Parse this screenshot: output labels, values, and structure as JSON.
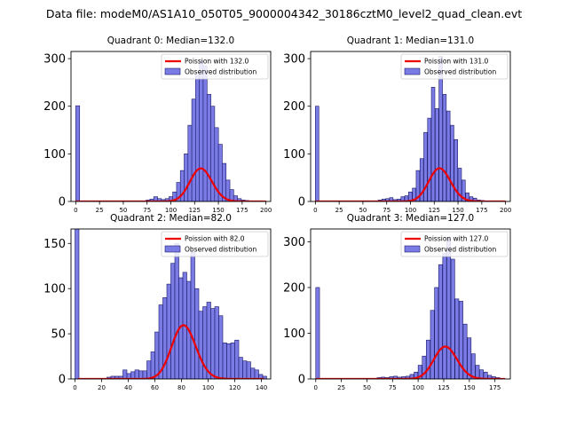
{
  "suptitle": "Data file: modeM0/AS1A10_050T05_9000004342_30186cztM0_level2_quad_clean.evt",
  "colors": {
    "bar_fill": "#7b7be6",
    "bar_edge": "#1a1a66",
    "curve": "#ee0000"
  },
  "chart_data": [
    {
      "type": "bar",
      "title": "Quadrant 0: Median=132.0",
      "median": 132.0,
      "legend": [
        "Poission with 132.0",
        "Observed distribution"
      ],
      "legend_position": "top-right",
      "xlim": [
        -5,
        205
      ],
      "ylim": [
        0,
        315
      ],
      "xticks": [
        0,
        25,
        50,
        75,
        100,
        125,
        150,
        175,
        200
      ],
      "yticks": [
        0,
        100,
        200,
        300
      ],
      "bin_width": 4.1,
      "bins": [
        0,
        74,
        78,
        82,
        86,
        90,
        94,
        98,
        102,
        106,
        110,
        114,
        118,
        122,
        126,
        130,
        134,
        138,
        142,
        146,
        150,
        154,
        158,
        162,
        166,
        170,
        174,
        178
      ],
      "counts": [
        201,
        3,
        5,
        10,
        6,
        4,
        6,
        10,
        20,
        40,
        65,
        100,
        160,
        215,
        265,
        295,
        285,
        225,
        200,
        155,
        120,
        80,
        45,
        25,
        12,
        6,
        3,
        2
      ],
      "curve_scale": 2000
    },
    {
      "type": "bar",
      "title": "Quadrant 1: Median=131.0",
      "median": 131.0,
      "legend": [
        "Poission with 131.0",
        "Observed distribution"
      ],
      "legend_position": "top-right",
      "xlim": [
        -5,
        205
      ],
      "ylim": [
        0,
        315
      ],
      "xticks": [
        0,
        25,
        50,
        75,
        100,
        125,
        150,
        175,
        200
      ],
      "yticks": [
        0,
        100,
        200,
        300
      ],
      "bin_width": 3.65,
      "bins": [
        0,
        66,
        70,
        74,
        78,
        82,
        86,
        90,
        94,
        98,
        102,
        106,
        110,
        114,
        118,
        122,
        126,
        130,
        134,
        138,
        142,
        146,
        150,
        154,
        158,
        162,
        166,
        170,
        174
      ],
      "counts": [
        200,
        3,
        5,
        6,
        8,
        4,
        5,
        10,
        12,
        20,
        28,
        65,
        90,
        145,
        175,
        240,
        195,
        305,
        225,
        190,
        160,
        130,
        70,
        45,
        18,
        10,
        7,
        3,
        2
      ],
      "curve_scale": 2000
    },
    {
      "type": "bar",
      "title": "Quadrant 2: Median=82.0",
      "median": 82.0,
      "legend": [
        "Poission with 82.0",
        "Observed distribution"
      ],
      "legend_position": "top-right",
      "xlim": [
        -3,
        147
      ],
      "ylim": [
        0,
        166
      ],
      "xticks": [
        0,
        20,
        40,
        60,
        80,
        100,
        120,
        140
      ],
      "yticks": [
        0,
        50,
        100,
        150
      ],
      "bin_width": 3.0,
      "bins": [
        0,
        24,
        27,
        30,
        33,
        36,
        39,
        42,
        45,
        48,
        51,
        54,
        57,
        60,
        63,
        66,
        69,
        72,
        75,
        78,
        81,
        84,
        87,
        90,
        93,
        96,
        99,
        102,
        105,
        108,
        111,
        114,
        117,
        120,
        123,
        126,
        129,
        132,
        135,
        138,
        141
      ],
      "counts": [
        168,
        2,
        3,
        3,
        3,
        10,
        6,
        8,
        10,
        9,
        9,
        20,
        30,
        52,
        82,
        90,
        105,
        128,
        150,
        112,
        118,
        108,
        140,
        100,
        75,
        80,
        85,
        78,
        80,
        70,
        40,
        39,
        40,
        43,
        24,
        20,
        19,
        12,
        10,
        5,
        3
      ],
      "curve_scale": 1350
    },
    {
      "type": "bar",
      "title": "Quadrant 3: Median=127.0",
      "median": 127.0,
      "legend": [
        "Poission with 127.0",
        "Observed distribution"
      ],
      "legend_position": "top-right",
      "xlim": [
        -5,
        190
      ],
      "ylim": [
        0,
        328
      ],
      "xticks": [
        0,
        25,
        50,
        75,
        100,
        125,
        150,
        175
      ],
      "yticks": [
        0,
        100,
        200,
        300
      ],
      "bin_width": 3.7,
      "bins": [
        0,
        60,
        64,
        68,
        72,
        76,
        80,
        84,
        88,
        92,
        96,
        100,
        104,
        108,
        112,
        116,
        120,
        124,
        128,
        132,
        136,
        140,
        144,
        148,
        152,
        156,
        160,
        164,
        168,
        172,
        176
      ],
      "counts": [
        200,
        3,
        4,
        3,
        5,
        6,
        4,
        5,
        6,
        10,
        15,
        30,
        50,
        85,
        150,
        200,
        250,
        275,
        310,
        262,
        175,
        170,
        120,
        90,
        55,
        30,
        20,
        15,
        8,
        5,
        3
      ],
      "curve_scale": 2000
    }
  ]
}
